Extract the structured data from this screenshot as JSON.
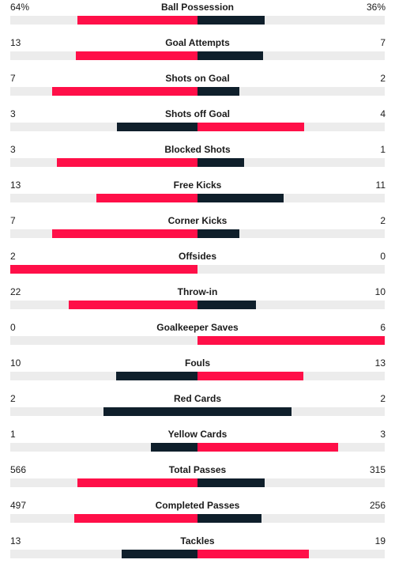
{
  "colors": {
    "winner": "#ff0f48",
    "loser": "#0f1f2b",
    "track": "#ececec"
  },
  "stats": [
    {
      "label": "Ball Possession",
      "home": "64%",
      "away": "36%",
      "home_share": 0.64,
      "away_share": 0.36
    },
    {
      "label": "Goal Attempts",
      "home": "13",
      "away": "7",
      "home_share": 0.65,
      "away_share": 0.35
    },
    {
      "label": "Shots on Goal",
      "home": "7",
      "away": "2",
      "home_share": 0.778,
      "away_share": 0.222
    },
    {
      "label": "Shots off Goal",
      "home": "3",
      "away": "4",
      "home_share": 0.429,
      "away_share": 0.571
    },
    {
      "label": "Blocked Shots",
      "home": "3",
      "away": "1",
      "home_share": 0.75,
      "away_share": 0.25
    },
    {
      "label": "Free Kicks",
      "home": "13",
      "away": "11",
      "home_share": 0.542,
      "away_share": 0.458
    },
    {
      "label": "Corner Kicks",
      "home": "7",
      "away": "2",
      "home_share": 0.778,
      "away_share": 0.222
    },
    {
      "label": "Offsides",
      "home": "2",
      "away": "0",
      "home_share": 1.0,
      "away_share": 0.0
    },
    {
      "label": "Throw-in",
      "home": "22",
      "away": "10",
      "home_share": 0.688,
      "away_share": 0.312
    },
    {
      "label": "Goalkeeper Saves",
      "home": "0",
      "away": "6",
      "home_share": 0.0,
      "away_share": 1.0
    },
    {
      "label": "Fouls",
      "home": "10",
      "away": "13",
      "home_share": 0.435,
      "away_share": 0.565
    },
    {
      "label": "Red Cards",
      "home": "2",
      "away": "2",
      "home_share": 0.5,
      "away_share": 0.5
    },
    {
      "label": "Yellow Cards",
      "home": "1",
      "away": "3",
      "home_share": 0.25,
      "away_share": 0.75
    },
    {
      "label": "Total Passes",
      "home": "566",
      "away": "315",
      "home_share": 0.642,
      "away_share": 0.358
    },
    {
      "label": "Completed Passes",
      "home": "497",
      "away": "256",
      "home_share": 0.66,
      "away_share": 0.34
    },
    {
      "label": "Tackles",
      "home": "13",
      "away": "19",
      "home_share": 0.406,
      "away_share": 0.594
    }
  ]
}
